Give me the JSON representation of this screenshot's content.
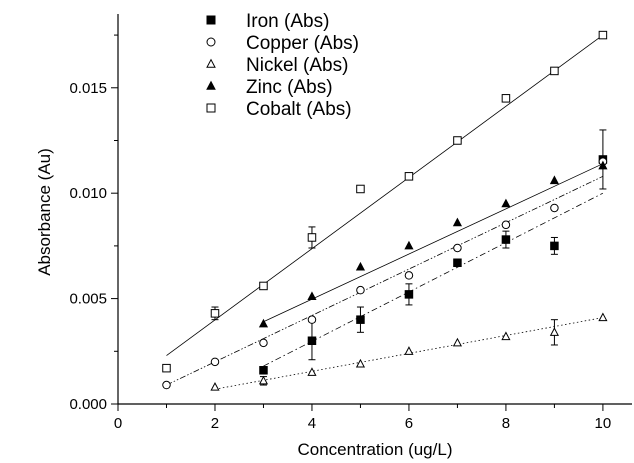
{
  "chart_data": {
    "type": "scatter",
    "title": "",
    "xlabel": "Concentration (ug/L)",
    "ylabel": "Absorbance (Au)",
    "xlim": [
      0,
      10.6
    ],
    "ylim": [
      0,
      0.0185
    ],
    "x_ticks": [
      0,
      2,
      4,
      6,
      8,
      10
    ],
    "x_tick_labels": [
      "0",
      "2",
      "4",
      "6",
      "8",
      "10"
    ],
    "y_ticks": [
      0.0,
      0.005,
      0.01,
      0.015
    ],
    "y_tick_labels": [
      "0.000",
      "0.005",
      "0.010",
      "0.015"
    ],
    "grid": false,
    "legend_position": "top-center",
    "series": [
      {
        "name": "Iron (Abs)",
        "marker": "filled-square",
        "line_style": "dash-dot",
        "x": [
          3,
          4,
          5,
          6,
          7,
          8,
          9,
          10
        ],
        "y": [
          0.0016,
          0.003,
          0.004,
          0.0052,
          0.0067,
          0.0078,
          0.0075,
          0.0116
        ],
        "error": [
          0,
          0.0009,
          0.0006,
          0.0005,
          0,
          0.0004,
          0.0004,
          0.0014
        ],
        "fit": [
          [
            3,
            0.0018
          ],
          [
            10,
            0.01
          ]
        ]
      },
      {
        "name": "Copper (Abs)",
        "marker": "open-circle",
        "line_style": "dash-dot-dot",
        "x": [
          1,
          2,
          3,
          4,
          5,
          6,
          7,
          8,
          9,
          10
        ],
        "y": [
          0.0009,
          0.002,
          0.0029,
          0.004,
          0.0054,
          0.0061,
          0.0074,
          0.0085,
          0.0093,
          0.0115
        ],
        "error": [
          0,
          0,
          0,
          0,
          0,
          0,
          0,
          0,
          0,
          0
        ],
        "fit": [
          [
            1,
            0.0009
          ],
          [
            10,
            0.0108
          ]
        ]
      },
      {
        "name": "Nickel (Abs)",
        "marker": "open-triangle",
        "line_style": "dotted",
        "x": [
          2,
          3,
          4,
          5,
          6,
          7,
          8,
          9,
          10
        ],
        "y": [
          0.0008,
          0.0011,
          0.0015,
          0.0019,
          0.0025,
          0.0029,
          0.0032,
          0.0034,
          0.0041
        ],
        "error": [
          0,
          0.0002,
          0,
          0,
          0,
          0,
          0,
          0.0006,
          0
        ],
        "fit": [
          [
            2,
            0.0007
          ],
          [
            10,
            0.0041
          ]
        ]
      },
      {
        "name": "Zinc (Abs)",
        "marker": "filled-triangle",
        "line_style": "solid",
        "x": [
          3,
          4,
          5,
          6,
          7,
          8,
          9,
          10
        ],
        "y": [
          0.0038,
          0.0051,
          0.0065,
          0.0075,
          0.0086,
          0.0095,
          0.0106,
          0.0113
        ],
        "error": [
          0,
          0,
          0,
          0,
          0,
          0,
          0,
          0
        ],
        "fit": [
          [
            3,
            0.0039
          ],
          [
            10,
            0.0114
          ]
        ]
      },
      {
        "name": "Cobalt (Abs)",
        "marker": "open-square",
        "line_style": "solid",
        "x": [
          1,
          2,
          3,
          4,
          5,
          6,
          7,
          8,
          9,
          10
        ],
        "y": [
          0.0017,
          0.0043,
          0.0056,
          0.0079,
          0.0102,
          0.0108,
          0.0125,
          0.0145,
          0.0158,
          0.0175
        ],
        "error": [
          0,
          0.0003,
          0,
          0.0005,
          0,
          0,
          0,
          0,
          0,
          0
        ],
        "fit": [
          [
            1,
            0.0023
          ],
          [
            10,
            0.0175
          ]
        ]
      }
    ]
  }
}
